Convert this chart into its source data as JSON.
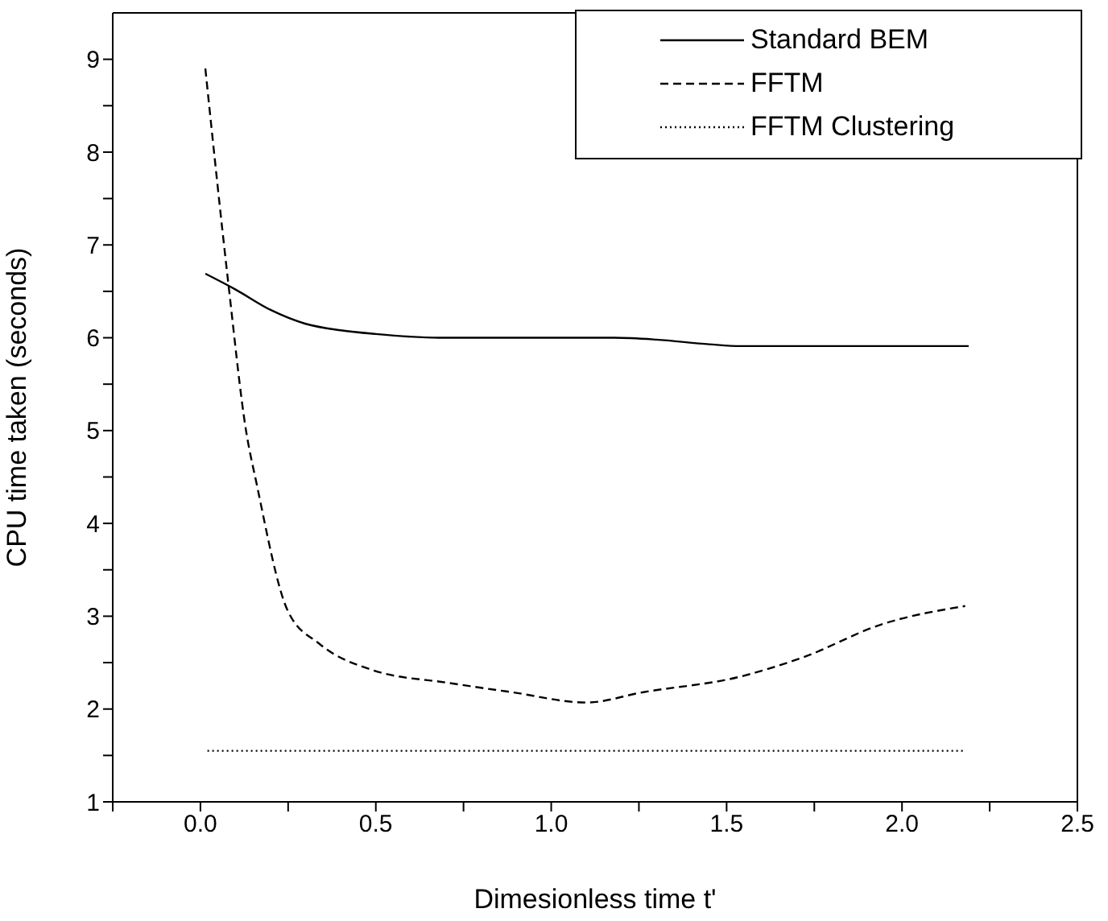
{
  "chart_data": {
    "type": "line",
    "xlabel": "Dimesionless time t'",
    "ylabel": "CPU time taken (seconds)",
    "xlim": [
      -0.25,
      2.5
    ],
    "ylim": [
      1,
      9.5
    ],
    "xticks": [
      {
        "value": -0.25,
        "label": null
      },
      {
        "value": 0,
        "label": "0.0"
      },
      {
        "value": 0.25,
        "label": null
      },
      {
        "value": 0.5,
        "label": "0.5"
      },
      {
        "value": 0.75,
        "label": null
      },
      {
        "value": 1,
        "label": "1.0"
      },
      {
        "value": 1.25,
        "label": null
      },
      {
        "value": 1.5,
        "label": "1.5"
      },
      {
        "value": 1.75,
        "label": null
      },
      {
        "value": 2,
        "label": "2.0"
      },
      {
        "value": 2.25,
        "label": null
      },
      {
        "value": 2.5,
        "label": "2.5"
      }
    ],
    "yticks": [
      1,
      {
        "value": 1.5,
        "label": null
      },
      2,
      {
        "value": 2.5,
        "label": null
      },
      3,
      {
        "value": 3.5,
        "label": null
      },
      4,
      {
        "value": 4.5,
        "label": null
      },
      5,
      {
        "value": 5.5,
        "label": null
      },
      6,
      {
        "value": 6.5,
        "label": null
      },
      7,
      {
        "value": 7.5,
        "label": null
      },
      8,
      {
        "value": 8.5,
        "label": null
      },
      9
    ],
    "legend": "top right",
    "series": [
      {
        "name": "Standard BEM",
        "color": "#000000",
        "line_style": "solid",
        "x": [
          0.014,
          0.1,
          0.2,
          0.3,
          0.4,
          0.5,
          0.68,
          0.9,
          1.18,
          1.3,
          1.45,
          1.54,
          1.8,
          2.19
        ],
        "values": [
          6.69,
          6.52,
          6.3,
          6.15,
          6.08,
          6.04,
          6.0,
          6.0,
          6.0,
          5.98,
          5.93,
          5.91,
          5.91,
          5.91
        ]
      },
      {
        "name": "FFTM",
        "color": "#000000",
        "line_style": "dashed",
        "x": [
          0.014,
          0.08,
          0.13,
          0.16,
          0.25,
          0.34,
          0.49,
          0.71,
          0.89,
          1.1,
          1.26,
          1.54,
          1.72,
          1.94,
          2.18
        ],
        "values": [
          8.9,
          6.57,
          5.0,
          4.43,
          3.05,
          2.7,
          2.42,
          2.28,
          2.18,
          2.07,
          2.18,
          2.35,
          2.56,
          2.91,
          3.11
        ]
      },
      {
        "name": "FFTM Clustering",
        "color": "#000000",
        "line_style": "dotted",
        "x": [
          0.02,
          2.18
        ],
        "values": [
          1.55,
          1.55
        ]
      }
    ]
  }
}
